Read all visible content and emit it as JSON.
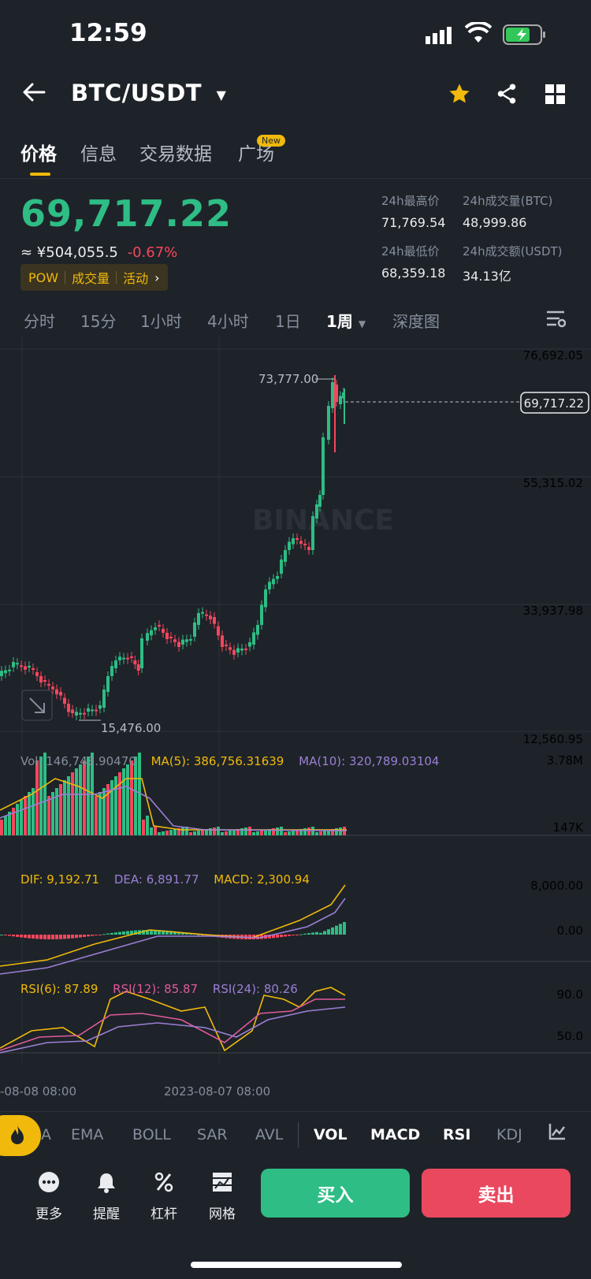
{
  "status": {
    "time": "12:59"
  },
  "header": {
    "pair": "BTC/USDT"
  },
  "tabs": [
    {
      "label": "价格",
      "active": true
    },
    {
      "label": "信息"
    },
    {
      "label": "交易数据"
    },
    {
      "label": "广场",
      "badge": "New"
    }
  ],
  "price": {
    "last": "69,717.22",
    "cny": "≈ ¥504,055.5",
    "change": "-0.67%"
  },
  "chip": {
    "items": [
      "POW",
      "成交量",
      "活动"
    ]
  },
  "stats": {
    "high_label": "24h最高价",
    "high": "71,769.54",
    "vol_btc_label": "24h成交量(BTC)",
    "vol_btc": "48,999.86",
    "low_label": "24h最低价",
    "low": "68,359.18",
    "vol_usdt_label": "24h成交额(USDT)",
    "vol_usdt": "34.13亿"
  },
  "intervals": [
    {
      "label": "分时"
    },
    {
      "label": "15分"
    },
    {
      "label": "1小时"
    },
    {
      "label": "4小时"
    },
    {
      "label": "1日"
    },
    {
      "label": "1周",
      "active": true
    },
    {
      "label": "深度图"
    }
  ],
  "chart": {
    "watermark": "BINANCE",
    "y_labels": [
      "76,692.05",
      "55,315.02",
      "33,937.98",
      "12,560.95"
    ],
    "current_price": "69,717.22",
    "max_label": "73,777.00",
    "min_label": "15,476.00",
    "vol_axis": [
      "3.78M",
      "147K"
    ],
    "macd_axis": [
      "8,000.00",
      "0.00"
    ],
    "rsi_axis": [
      "90.0",
      "50.0"
    ],
    "x_labels": [
      "-08-08 08:00",
      "2023-08-07 08:00"
    ]
  },
  "chart_data": {
    "type": "candlestick",
    "interval": "1周",
    "ylim": [
      12560.95,
      76692.05
    ],
    "annotations": {
      "high": 73777.0,
      "low": 15476.0,
      "last": 69717.22
    }
  },
  "legends": {
    "vol": [
      "Vol: 146,743.90470",
      "MA(5): 386,756.31639",
      "MA(10): 320,789.03104"
    ],
    "macd": [
      "DIF: 9,192.71",
      "DEA: 6,891.77",
      "MACD: 2,300.94"
    ],
    "rsi": [
      "RSI(6): 87.89",
      "RSI(12): 85.87",
      "RSI(24): 80.26"
    ]
  },
  "indicators": [
    {
      "label": "A"
    },
    {
      "label": "EMA"
    },
    {
      "label": "BOLL"
    },
    {
      "label": "SAR"
    },
    {
      "label": "AVL"
    },
    {
      "label": "VOL",
      "on": true
    },
    {
      "label": "MACD",
      "on": true
    },
    {
      "label": "RSI",
      "on": true
    },
    {
      "label": "KDJ"
    }
  ],
  "bottom": {
    "more": "更多",
    "alert": "提醒",
    "leverage": "杠杆",
    "grid": "网格",
    "buy": "买入",
    "sell": "卖出"
  },
  "colors": {
    "up": "#2ebd85",
    "down": "#f6465d",
    "accent": "#f0b90b",
    "bg": "#1e2329"
  }
}
